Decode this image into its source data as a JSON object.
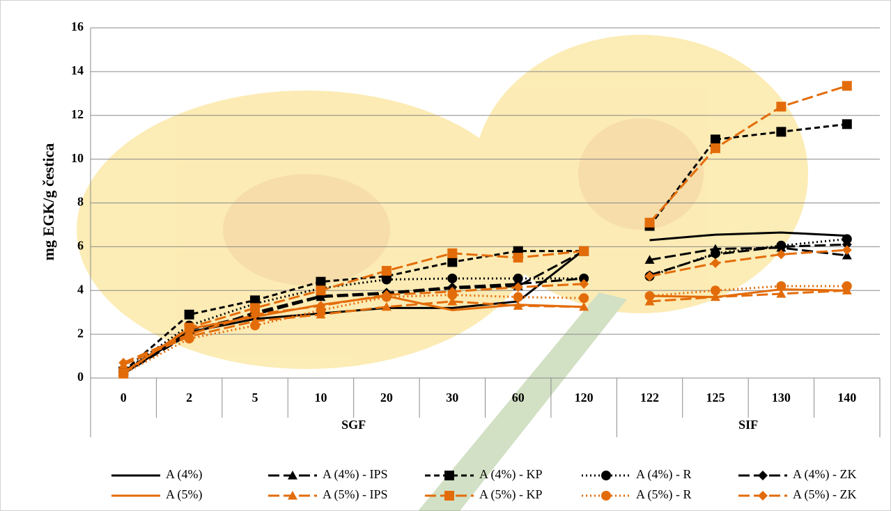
{
  "chart_data": {
    "type": "line",
    "y_label": "mg  EGK/g čestica",
    "categories": [
      "0",
      "2",
      "5",
      "10",
      "20",
      "30",
      "60",
      "120",
      "122",
      "125",
      "130",
      "140"
    ],
    "category_groups": [
      "SGF",
      "SGF",
      "SGF",
      "SGF",
      "SGF",
      "SGF",
      "SGF",
      "SGF",
      "SIF",
      "SIF",
      "SIF",
      "SIF"
    ],
    "ylim": [
      0,
      16
    ],
    "yticks": [
      0,
      2,
      4,
      6,
      8,
      10,
      12,
      14,
      16
    ],
    "grid": true,
    "legend": "bottom",
    "series": [
      {
        "name": "A (4%)",
        "color": "#000000",
        "dash": "solid",
        "marker": "none",
        "values": [
          0.2,
          2.1,
          2.7,
          2.95,
          3.2,
          3.2,
          3.5,
          5.85,
          6.3,
          6.55,
          6.65,
          6.5
        ]
      },
      {
        "name": "A (4%) - IPS",
        "color": "#000000",
        "dash": "long-dash",
        "marker": "triangle",
        "values": [
          0.3,
          2.2,
          2.9,
          3.7,
          3.85,
          4.1,
          4.2,
          5.8,
          5.4,
          5.9,
          5.95,
          5.6
        ]
      },
      {
        "name": "A (4%) - KP",
        "color": "#000000",
        "dash": "dash",
        "marker": "square",
        "values": [
          0.3,
          2.9,
          3.55,
          4.4,
          4.65,
          5.3,
          5.8,
          5.8,
          6.95,
          10.9,
          11.25,
          11.6
        ]
      },
      {
        "name": "A (4%) - R",
        "color": "#000000",
        "dash": "dot",
        "marker": "circle",
        "values": [
          0.3,
          2.4,
          3.4,
          4.1,
          4.5,
          4.55,
          4.55,
          4.55,
          4.65,
          5.7,
          6.05,
          6.35
        ]
      },
      {
        "name": "A (4%) - ZK",
        "color": "#000000",
        "dash": "long-dash",
        "marker": "diamond",
        "values": [
          0.2,
          2.0,
          3.0,
          3.75,
          3.9,
          4.15,
          4.3,
          4.55,
          4.7,
          5.65,
          6.0,
          6.1
        ]
      },
      {
        "name": "A (5%)",
        "color": "#e36c0a",
        "dash": "solid",
        "marker": "none",
        "values": [
          0.25,
          2.25,
          2.8,
          3.35,
          3.75,
          3.1,
          3.35,
          3.25,
          3.75,
          3.7,
          4.05,
          4.0
        ]
      },
      {
        "name": "A (5%) - IPS",
        "color": "#e36c0a",
        "dash": "long-dash",
        "marker": "triangle",
        "values": [
          0.6,
          1.9,
          2.6,
          2.9,
          3.25,
          3.5,
          3.3,
          3.25,
          3.5,
          3.7,
          3.85,
          4.0
        ]
      },
      {
        "name": "A (5%) - KP",
        "color": "#e36c0a",
        "dash": "long-dash",
        "marker": "square",
        "values": [
          0.2,
          2.3,
          3.2,
          4.0,
          4.9,
          5.7,
          5.5,
          5.8,
          7.1,
          10.5,
          12.4,
          13.35
        ]
      },
      {
        "name": "A (5%) - R",
        "color": "#e36c0a",
        "dash": "dot",
        "marker": "circle",
        "values": [
          0.2,
          1.8,
          2.4,
          3.1,
          3.7,
          3.8,
          3.7,
          3.65,
          3.75,
          4.0,
          4.2,
          4.2
        ]
      },
      {
        "name": "A (5%) - ZK",
        "color": "#e36c0a",
        "dash": "long-dash",
        "marker": "diamond",
        "values": [
          0.7,
          2.0,
          2.9,
          3.3,
          3.8,
          3.95,
          4.15,
          4.3,
          4.65,
          5.25,
          5.65,
          5.85
        ]
      }
    ]
  }
}
